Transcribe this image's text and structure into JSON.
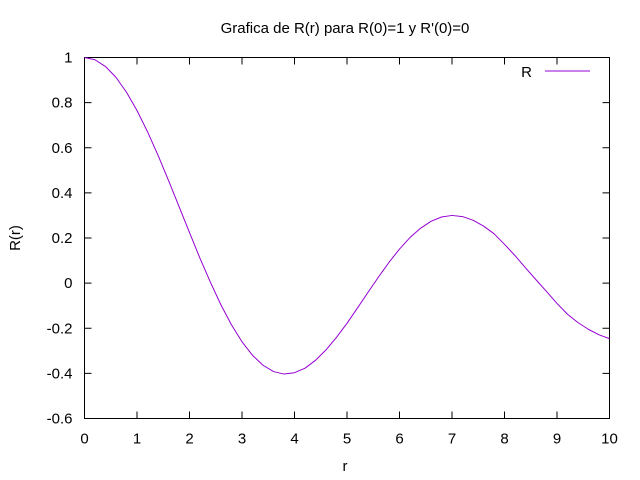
{
  "chart_data": {
    "type": "line",
    "title": "Grafica de R(r) para R(0)=1 y R'(0)=0",
    "xlabel": "r",
    "ylabel": "R(r)",
    "xlim": [
      0,
      10
    ],
    "ylim": [
      -0.6,
      1
    ],
    "xticks": [
      0,
      1,
      2,
      3,
      4,
      5,
      6,
      7,
      8,
      9,
      10
    ],
    "xtick_labels": [
      "0",
      "1",
      "2",
      "3",
      "4",
      "5",
      "6",
      "7",
      "8",
      "9",
      "10"
    ],
    "yticks": [
      -0.6,
      -0.4,
      -0.2,
      0,
      0.2,
      0.4,
      0.6,
      0.8,
      1
    ],
    "ytick_labels": [
      "-0.6",
      "-0.4",
      "-0.2",
      "0",
      "0.2",
      "0.4",
      "0.6",
      "0.8",
      "1"
    ],
    "grid": false,
    "legend_position": "top-right",
    "series": [
      {
        "name": "R",
        "color": "#9400d3",
        "x": [
          0,
          0.2,
          0.4,
          0.6,
          0.8,
          1.0,
          1.2,
          1.4,
          1.6,
          1.8,
          2.0,
          2.2,
          2.4,
          2.6,
          2.8,
          3.0,
          3.2,
          3.4,
          3.6,
          3.8,
          4.0,
          4.2,
          4.4,
          4.6,
          4.8,
          5.0,
          5.2,
          5.4,
          5.6,
          5.8,
          6.0,
          6.2,
          6.4,
          6.6,
          6.8,
          7.0,
          7.2,
          7.4,
          7.6,
          7.8,
          8.0,
          8.2,
          8.4,
          8.6,
          8.8,
          9.0,
          9.2,
          9.4,
          9.6,
          9.8,
          10.0
        ],
        "values": [
          1.0,
          0.99,
          0.96,
          0.912,
          0.846,
          0.765,
          0.671,
          0.567,
          0.455,
          0.34,
          0.224,
          0.11,
          0.003,
          -0.097,
          -0.185,
          -0.26,
          -0.32,
          -0.364,
          -0.392,
          -0.403,
          -0.397,
          -0.377,
          -0.342,
          -0.296,
          -0.24,
          -0.178,
          -0.11,
          -0.041,
          0.027,
          0.092,
          0.151,
          0.202,
          0.243,
          0.274,
          0.293,
          0.3,
          0.295,
          0.279,
          0.253,
          0.219,
          0.172,
          0.122,
          0.068,
          0.015,
          -0.037,
          -0.09,
          -0.138,
          -0.175,
          -0.205,
          -0.229,
          -0.246
        ]
      }
    ]
  }
}
